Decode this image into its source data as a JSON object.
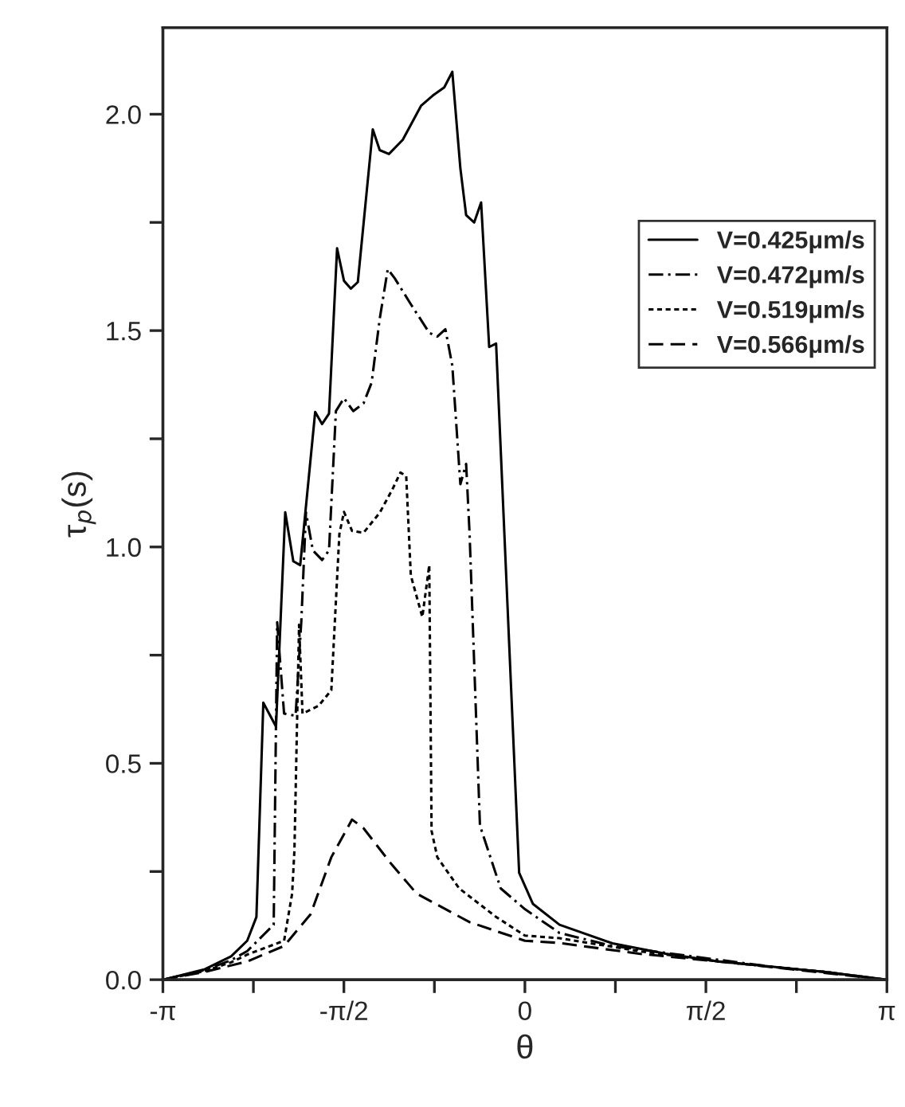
{
  "chart_data": {
    "type": "line",
    "xlabel": "θ",
    "ylabel": "τ$_{p}$(s)",
    "xlim": [
      -3.1416,
      3.1416
    ],
    "ylim": [
      0,
      2.2
    ],
    "xticks": [
      {
        "value": -3.1416,
        "label": "-π"
      },
      {
        "value": -2.3562,
        "label": null
      },
      {
        "value": -1.5708,
        "label": "-π/2"
      },
      {
        "value": -0.7854,
        "label": null
      },
      0,
      {
        "value": 0.7854,
        "label": null
      },
      {
        "value": 1.5708,
        "label": "π/2"
      },
      {
        "value": 2.3562,
        "label": null
      },
      {
        "value": 3.1416,
        "label": "π"
      }
    ],
    "yticks": [
      {
        "value": 0,
        "label": "0.0"
      },
      {
        "value": 0.25,
        "label": null
      },
      0.5,
      {
        "value": 0.75,
        "label": null
      },
      {
        "value": 1,
        "label": "1.0"
      },
      {
        "value": 1.25,
        "label": null
      },
      1.5,
      {
        "value": 1.75,
        "label": null
      },
      {
        "value": 2,
        "label": "2.0"
      }
    ],
    "grid": false,
    "legend": "right",
    "marker": "none",
    "series": [
      {
        "name": "V=0.425μm/s",
        "color": "#000000",
        "line_style": "solid",
        "x": [
          -3.14,
          -2.78,
          -2.55,
          -2.41,
          -2.33,
          -2.27,
          -2.21,
          -2.16,
          -2.08,
          -2.01,
          -1.95,
          -1.82,
          -1.76,
          -1.7,
          -1.63,
          -1.57,
          -1.51,
          -1.45,
          -1.32,
          -1.26,
          -1.18,
          -1.06,
          -0.9,
          -0.8,
          -0.7,
          -0.63,
          -0.56,
          -0.51,
          -0.44,
          -0.38,
          -0.31,
          -0.25,
          -0.05,
          0.07,
          0.3,
          0.76,
          1.22,
          1.68,
          2.14,
          2.6,
          3.14
        ],
        "values": [
          0,
          0.024,
          0.054,
          0.09,
          0.145,
          0.64,
          0.61,
          0.585,
          1.08,
          0.967,
          0.958,
          1.312,
          1.284,
          1.308,
          1.69,
          1.615,
          1.597,
          1.612,
          1.965,
          1.917,
          1.908,
          1.941,
          2.02,
          2.043,
          2.062,
          2.098,
          1.875,
          1.767,
          1.75,
          1.796,
          1.462,
          1.47,
          0.247,
          0.175,
          0.127,
          0.084,
          0.06,
          0.042,
          0.03,
          0.018,
          0
        ]
      },
      {
        "name": "V=0.472μm/s",
        "color": "#000000",
        "line_style": "dashdot",
        "x": [
          -3.14,
          -2.78,
          -2.55,
          -2.41,
          -2.18,
          -2.15,
          -2.09,
          -1.99,
          -1.94,
          -1.9,
          -1.84,
          -1.76,
          -1.7,
          -1.64,
          -1.57,
          -1.49,
          -1.4,
          -1.33,
          -1.26,
          -1.19,
          -1.13,
          -0.99,
          -0.83,
          -0.76,
          -0.69,
          -0.63,
          -0.56,
          -0.51,
          -0.48,
          -0.39,
          -0.21,
          0,
          0.3,
          0.76,
          1.45,
          2.14,
          2.6,
          3.14
        ],
        "values": [
          0,
          0.022,
          0.045,
          0.066,
          0.127,
          0.826,
          0.615,
          0.61,
          0.83,
          1.08,
          0.992,
          0.97,
          0.992,
          1.314,
          1.344,
          1.314,
          1.332,
          1.38,
          1.527,
          1.642,
          1.621,
          1.561,
          1.495,
          1.486,
          1.503,
          1.419,
          1.145,
          1.192,
          1.03,
          0.356,
          0.211,
          0.163,
          0.108,
          0.078,
          0.054,
          0.03,
          0.018,
          0
        ]
      },
      {
        "name": "V=0.519μm/s",
        "color": "#000000",
        "line_style": "dotted",
        "x": [
          -3.14,
          -2.78,
          -2.55,
          -2.41,
          -2.09,
          -2.02,
          -2.0,
          -1.96,
          -1.93,
          -1.79,
          -1.68,
          -1.61,
          -1.57,
          -1.5,
          -1.4,
          -1.26,
          -1.15,
          -1.08,
          -1.03,
          -0.99,
          -0.94,
          -0.89,
          -0.83,
          -0.81,
          -0.76,
          -0.57,
          -0.25,
          0,
          0.3,
          0.99,
          1.68,
          2.14,
          2.6,
          3.14
        ],
        "values": [
          0,
          0.02,
          0.04,
          0.058,
          0.09,
          0.199,
          0.3,
          0.82,
          0.615,
          0.633,
          0.669,
          1.03,
          1.081,
          1.037,
          1.033,
          1.079,
          1.133,
          1.172,
          1.164,
          0.934,
          0.886,
          0.838,
          0.958,
          0.344,
          0.283,
          0.211,
          0.145,
          0.102,
          0.096,
          0.066,
          0.042,
          0.03,
          0.018,
          0
        ]
      },
      {
        "name": "V=0.566μm/s",
        "color": "#000000",
        "line_style": "dashed",
        "x": [
          -3.14,
          -2.78,
          -2.41,
          -2.09,
          -1.86,
          -1.68,
          -1.5,
          -1.4,
          -1.17,
          -0.94,
          -0.48,
          0,
          0.3,
          0.99,
          1.91,
          3.14
        ],
        "values": [
          0,
          0.018,
          0.042,
          0.078,
          0.151,
          0.283,
          0.37,
          0.35,
          0.271,
          0.199,
          0.133,
          0.09,
          0.085,
          0.06,
          0.036,
          0
        ]
      }
    ]
  }
}
